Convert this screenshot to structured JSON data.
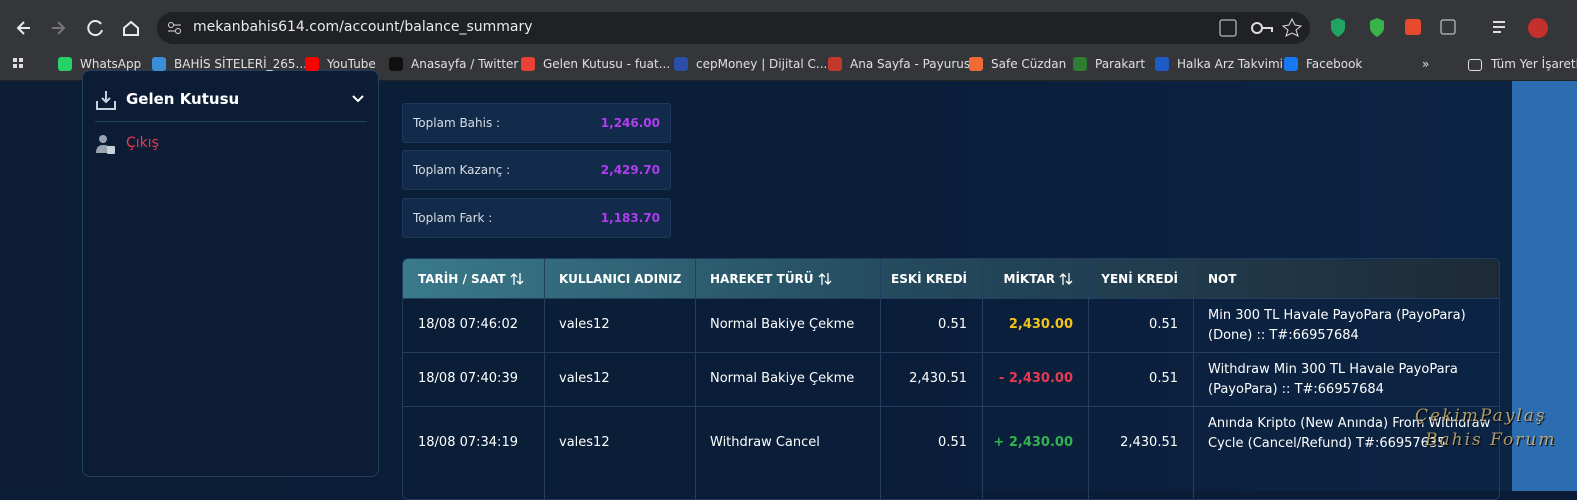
{
  "browser": {
    "url": "mekanbahis614.com/account/balance_summary",
    "bookmarks": [
      "WhatsApp",
      "BAHİS SİTELERİ_265...",
      "YouTube",
      "Anasayfa / Twitter",
      "Gelen Kutusu - fuat...",
      "cepMoney | Dijital C...",
      "Ana Sayfa - Payurus",
      "Safe Cüzdan",
      "Parakart",
      "Halka Arz Takvimi",
      "Facebook"
    ],
    "all_bookmarks": "Tüm Yer İşaretl"
  },
  "sidebar": {
    "items": [
      "Gelen Kutusu",
      "Çıkış"
    ]
  },
  "summary": [
    {
      "label": "Toplam Bahis :",
      "value": "1,246.00"
    },
    {
      "label": "Toplam Kazanç :",
      "value": "2,429.70"
    },
    {
      "label": "Toplam Fark :",
      "value": "1,183.70"
    }
  ],
  "table": {
    "headers": [
      {
        "label": "TARİH / SAAT",
        "sortable": true
      },
      {
        "label": "KULLANICI ADINIZ",
        "sortable": false
      },
      {
        "label": "HAREKET TÜRÜ",
        "sortable": true
      },
      {
        "label": "ESKİ KREDİ",
        "sortable": false
      },
      {
        "label": "MİKTAR",
        "sortable": true
      },
      {
        "label": "YENİ KREDİ",
        "sortable": false
      },
      {
        "label": "NOT",
        "sortable": false
      }
    ],
    "rows": [
      {
        "cells": [
          "18/08 07:46:02",
          "vales12",
          "Normal Bakiye Çekme",
          "0.51",
          "2,430.00",
          "0.51",
          "Min 300 TL Havale PayoPara (PayoPara) (Done) :: T#:66957684"
        ],
        "amount_color": "#f2c31b"
      },
      {
        "cells": [
          "18/08 07:40:39",
          "vales12",
          "Normal Bakiye Çekme",
          "2,430.51",
          "- 2,430.00",
          "0.51",
          "Withdraw Min 300 TL Havale PayoPara (PayoPara) :: T#:66957684"
        ],
        "amount_color": "#ea3a52"
      },
      {
        "cells": [
          "18/08 07:34:19",
          "vales12",
          "Withdraw Cancel",
          "0.51",
          "+ 2,430.00",
          "2,430.51",
          "Anında Kripto (New Anında) From Withdraw Cycle (Cancel/Refund) T#:66957635"
        ],
        "amount_color": "#33b34f"
      }
    ]
  },
  "watermark": {
    "line1": "ÇekimPaylaş",
    "line2": "Bahis Forum"
  }
}
